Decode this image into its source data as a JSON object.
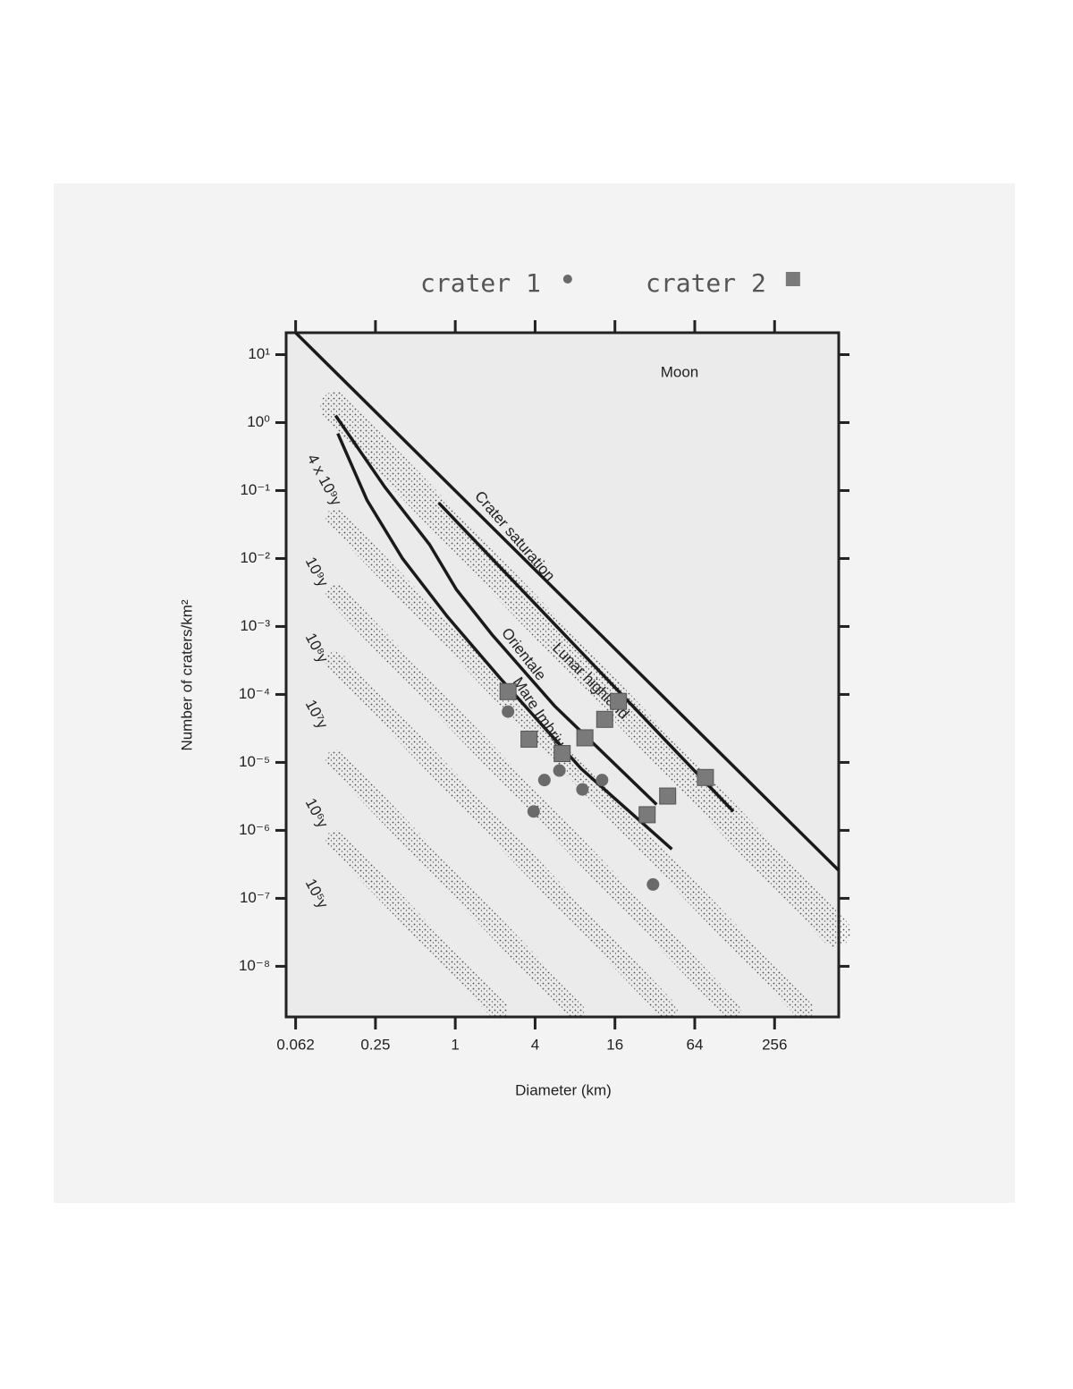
{
  "chart_data": {
    "type": "scatter",
    "annotations": [
      "Moon",
      "Lunar highland"
    ],
    "x_label": "Diameter (km)",
    "y_label": "Number of craters/km²",
    "xscale": "log",
    "yscale": "log",
    "xlim": [
      0.053,
      780
    ],
    "ylim": [
      1.8e-09,
      21
    ],
    "xticks": [
      {
        "value": 0.0625,
        "label": "0.062"
      },
      0.25,
      1,
      4,
      16,
      64,
      256
    ],
    "yticks": [
      {
        "value": 10,
        "label": "10¹"
      },
      {
        "value": 1,
        "label": "10⁰"
      },
      {
        "value": 0.1,
        "label": "10⁻¹"
      },
      {
        "value": 0.01,
        "label": "10⁻²"
      },
      {
        "value": 0.001,
        "label": "10⁻³"
      },
      {
        "value": 0.0001,
        "label": "10⁻⁴"
      },
      {
        "value": 1e-05,
        "label": "10⁻⁵"
      },
      {
        "value": 1e-06,
        "label": "10⁻⁶"
      },
      {
        "value": 1e-07,
        "label": "10⁻⁷"
      },
      {
        "value": 1e-08,
        "label": "10⁻⁸"
      }
    ],
    "series": [
      {
        "name": "crater 1",
        "marker": "circle",
        "color": "#6a6a6a",
        "x": [
          2.5,
          4.7,
          6.1,
          3.9,
          9.1,
          12.8,
          31
        ],
        "values": [
          5.6e-05,
          5.5e-06,
          7.6e-06,
          1.9e-06,
          4e-06,
          5.5e-06,
          1.6e-07
        ]
      },
      {
        "name": "crater 2",
        "marker": "square",
        "color": "#7a7a7a",
        "x": [
          2.5,
          3.6,
          6.4,
          9.5,
          13.4,
          17,
          28,
          40,
          77
        ],
        "values": [
          0.00011,
          2.2e-05,
          1.35e-05,
          2.3e-05,
          4.3e-05,
          7.9e-05,
          1.7e-06,
          3.2e-06,
          6e-06
        ]
      }
    ],
    "lines": [
      {
        "x": [
          0.0625,
          776
        ],
        "values": [
          21,
          2.6e-07
        ]
      },
      {
        "name": "Crater saturation",
        "x": [
          0.75,
          125
        ],
        "values": [
          0.066,
          1.9e-06
        ]
      },
      {
        "name": "Orientale",
        "x": [
          0.125,
          0.295,
          0.64,
          1.02,
          1.89,
          5.6,
          33
        ],
        "values": [
          1.27,
          0.112,
          0.016,
          0.0035,
          0.00076,
          6.8e-05,
          2.4e-06
        ]
      },
      {
        "name": "Mare Imbrium",
        "x": [
          0.13,
          0.216,
          0.4,
          0.87,
          2.2,
          8.9,
          43
        ],
        "values": [
          0.69,
          0.072,
          0.01,
          0.0014,
          0.00017,
          8.1e-06,
          5.3e-07
        ]
      }
    ],
    "isochrons": [
      {
        "name": "4 x 10⁹y",
        "x": [
          0.125,
          740
        ],
        "values": [
          1.72,
          3.2e-08
        ]
      },
      {
        "name": "10⁹y",
        "x": [
          0.125,
          424
        ],
        "values": [
          0.039,
          2.3e-09
        ]
      },
      {
        "name": "10⁸y",
        "x": [
          0.125,
          121
        ],
        "values": [
          0.00297,
          2.3e-09
        ]
      },
      {
        "name": "10⁷y",
        "x": [
          0.125,
          40
        ],
        "values": [
          0.00031,
          2.3e-09
        ]
      },
      {
        "name": "10⁶y",
        "x": [
          0.125,
          7.9
        ],
        "values": [
          1.1e-05,
          2.3e-09
        ]
      },
      {
        "name": "10⁵y",
        "x": [
          0.125,
          2.1
        ],
        "values": [
          7.2e-07,
          2.3e-09
        ]
      }
    ]
  }
}
